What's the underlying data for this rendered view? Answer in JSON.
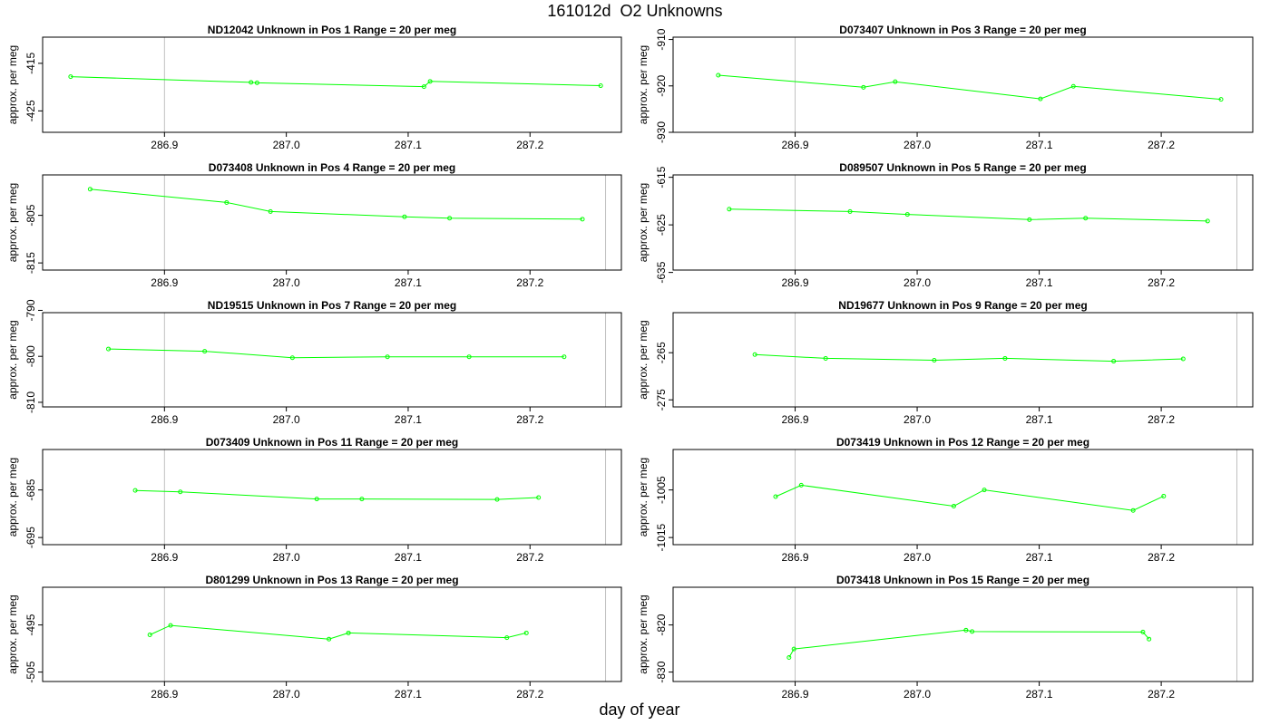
{
  "figure": {
    "title": "161012d  O2 Unknowns",
    "xlabel": "day of year",
    "ylabel": "approx. per meg"
  },
  "colors": {
    "series": "#00ff00",
    "vline": "#c0c0c0",
    "frame": "#000000"
  },
  "chart_data": [
    {
      "type": "line",
      "title": "ND12042    Unknown in Pos 1          Range = 20 per meg",
      "xlim": [
        286.8,
        287.275
      ],
      "ylim": [
        -429.5,
        -409.5
      ],
      "xticks": [
        286.9,
        287.0,
        287.1,
        287.2
      ],
      "yticks": [
        -415,
        -425
      ],
      "vlines": [
        286.9
      ],
      "x": [
        286.823,
        286.971,
        286.976,
        287.113,
        287.118,
        287.258
      ],
      "y": [
        -417.8,
        -419.0,
        -419.1,
        -419.9,
        -418.8,
        -419.7
      ]
    },
    {
      "type": "line",
      "title": "D073407    Unknown in Pos 3          Range = 20 per meg",
      "xlim": [
        286.8,
        287.275
      ],
      "ylim": [
        -930,
        -909.5
      ],
      "xticks": [
        286.9,
        287.0,
        287.1,
        287.2
      ],
      "yticks": [
        -910,
        -920,
        -930
      ],
      "vlines": [
        286.9
      ],
      "x": [
        286.837,
        286.956,
        286.982,
        287.101,
        287.128,
        287.249
      ],
      "y": [
        -917.7,
        -920.3,
        -919.1,
        -922.8,
        -920.1,
        -922.9
      ]
    },
    {
      "type": "line",
      "title": "D073408    Unknown in Pos 4          Range = 20 per meg",
      "xlim": [
        286.8,
        287.275
      ],
      "ylim": [
        -816.5,
        -796.5
      ],
      "xticks": [
        286.9,
        287.0,
        287.1,
        287.2
      ],
      "yticks": [
        -805,
        -815
      ],
      "vlines": [
        286.9,
        287.262
      ],
      "x": [
        286.839,
        286.951,
        286.987,
        287.097,
        287.134,
        287.243
      ],
      "y": [
        -799.5,
        -802.3,
        -804.2,
        -805.3,
        -805.6,
        -805.8
      ]
    },
    {
      "type": "line",
      "title": "D089507    Unknown in Pos 5          Range = 20 per meg",
      "xlim": [
        286.8,
        287.275
      ],
      "ylim": [
        -634.5,
        -614.5
      ],
      "xticks": [
        286.9,
        287.0,
        287.1,
        287.2
      ],
      "yticks": [
        -615,
        -625,
        -635
      ],
      "vlines": [
        286.9,
        287.262
      ],
      "x": [
        286.846,
        286.945,
        286.992,
        287.092,
        287.138,
        287.238
      ],
      "y": [
        -621.7,
        -622.2,
        -622.8,
        -623.9,
        -623.6,
        -624.2
      ]
    },
    {
      "type": "line",
      "title": "ND19515    Unknown in Pos 7          Range = 20 per meg",
      "xlim": [
        286.8,
        287.275
      ],
      "ylim": [
        -811,
        -790.5
      ],
      "xticks": [
        286.9,
        287.0,
        287.1,
        287.2
      ],
      "yticks": [
        -790,
        -800,
        -810
      ],
      "vlines": [
        286.9,
        287.262
      ],
      "x": [
        286.854,
        286.933,
        287.005,
        287.083,
        287.15,
        287.228
      ],
      "y": [
        -798.4,
        -798.9,
        -800.3,
        -800.1,
        -800.1,
        -800.1
      ]
    },
    {
      "type": "line",
      "title": "ND19677    Unknown in Pos 9          Range = 20 per meg",
      "xlim": [
        286.8,
        287.275
      ],
      "ylim": [
        -276.5,
        -256.5
      ],
      "xticks": [
        286.9,
        287.0,
        287.1,
        287.2
      ],
      "yticks": [
        -265,
        -275
      ],
      "vlines": [
        286.9,
        287.262
      ],
      "x": [
        286.867,
        286.925,
        287.014,
        287.072,
        287.161,
        287.218
      ],
      "y": [
        -265.4,
        -266.2,
        -266.6,
        -266.2,
        -266.8,
        -266.3
      ]
    },
    {
      "type": "line",
      "title": "D073409    Unknown in Pos 11          Range = 20 per meg",
      "xlim": [
        286.8,
        287.275
      ],
      "ylim": [
        -696.5,
        -676.5
      ],
      "xticks": [
        286.9,
        287.0,
        287.1,
        287.2
      ],
      "yticks": [
        -685,
        -695
      ],
      "vlines": [
        286.9,
        287.262
      ],
      "x": [
        286.876,
        286.913,
        287.025,
        287.062,
        287.173,
        287.207
      ],
      "y": [
        -685.1,
        -685.4,
        -686.9,
        -686.9,
        -687.0,
        -686.6
      ]
    },
    {
      "type": "line",
      "title": "D073419    Unknown in Pos 12          Range = 20 per meg",
      "xlim": [
        286.8,
        287.275
      ],
      "ylim": [
        -1016.5,
        -996.5
      ],
      "xticks": [
        286.9,
        287.0,
        287.1,
        287.2
      ],
      "yticks": [
        -1005,
        -1015
      ],
      "vlines": [
        286.9,
        287.262
      ],
      "x": [
        286.884,
        286.905,
        287.03,
        287.055,
        287.177,
        287.202
      ],
      "y": [
        -1006.4,
        -1004.0,
        -1008.4,
        -1005.0,
        -1009.3,
        -1006.3
      ]
    },
    {
      "type": "line",
      "title": "D801299    Unknown in Pos 13          Range = 20 per meg",
      "xlim": [
        286.8,
        287.275
      ],
      "ylim": [
        -507,
        -487
      ],
      "xticks": [
        286.9,
        287.0,
        287.1,
        287.2
      ],
      "yticks": [
        -495,
        -505
      ],
      "vlines": [
        286.9,
        287.262
      ],
      "x": [
        286.888,
        286.905,
        287.035,
        287.051,
        287.181,
        287.197
      ],
      "y": [
        -497.1,
        -495.1,
        -498.0,
        -496.7,
        -497.7,
        -496.7
      ]
    },
    {
      "type": "line",
      "title": "D073418    Unknown in Pos 15          Range = 20 per meg",
      "xlim": [
        286.8,
        287.275
      ],
      "ylim": [
        -832,
        -812
      ],
      "xticks": [
        286.9,
        287.0,
        287.1,
        287.2
      ],
      "yticks": [
        -820,
        -830
      ],
      "vlines": [
        286.9,
        287.262
      ],
      "x": [
        286.895,
        286.899,
        287.04,
        287.045,
        287.185,
        287.19
      ],
      "y": [
        -826.9,
        -825.1,
        -821.1,
        -821.4,
        -821.5,
        -823.0
      ]
    }
  ]
}
